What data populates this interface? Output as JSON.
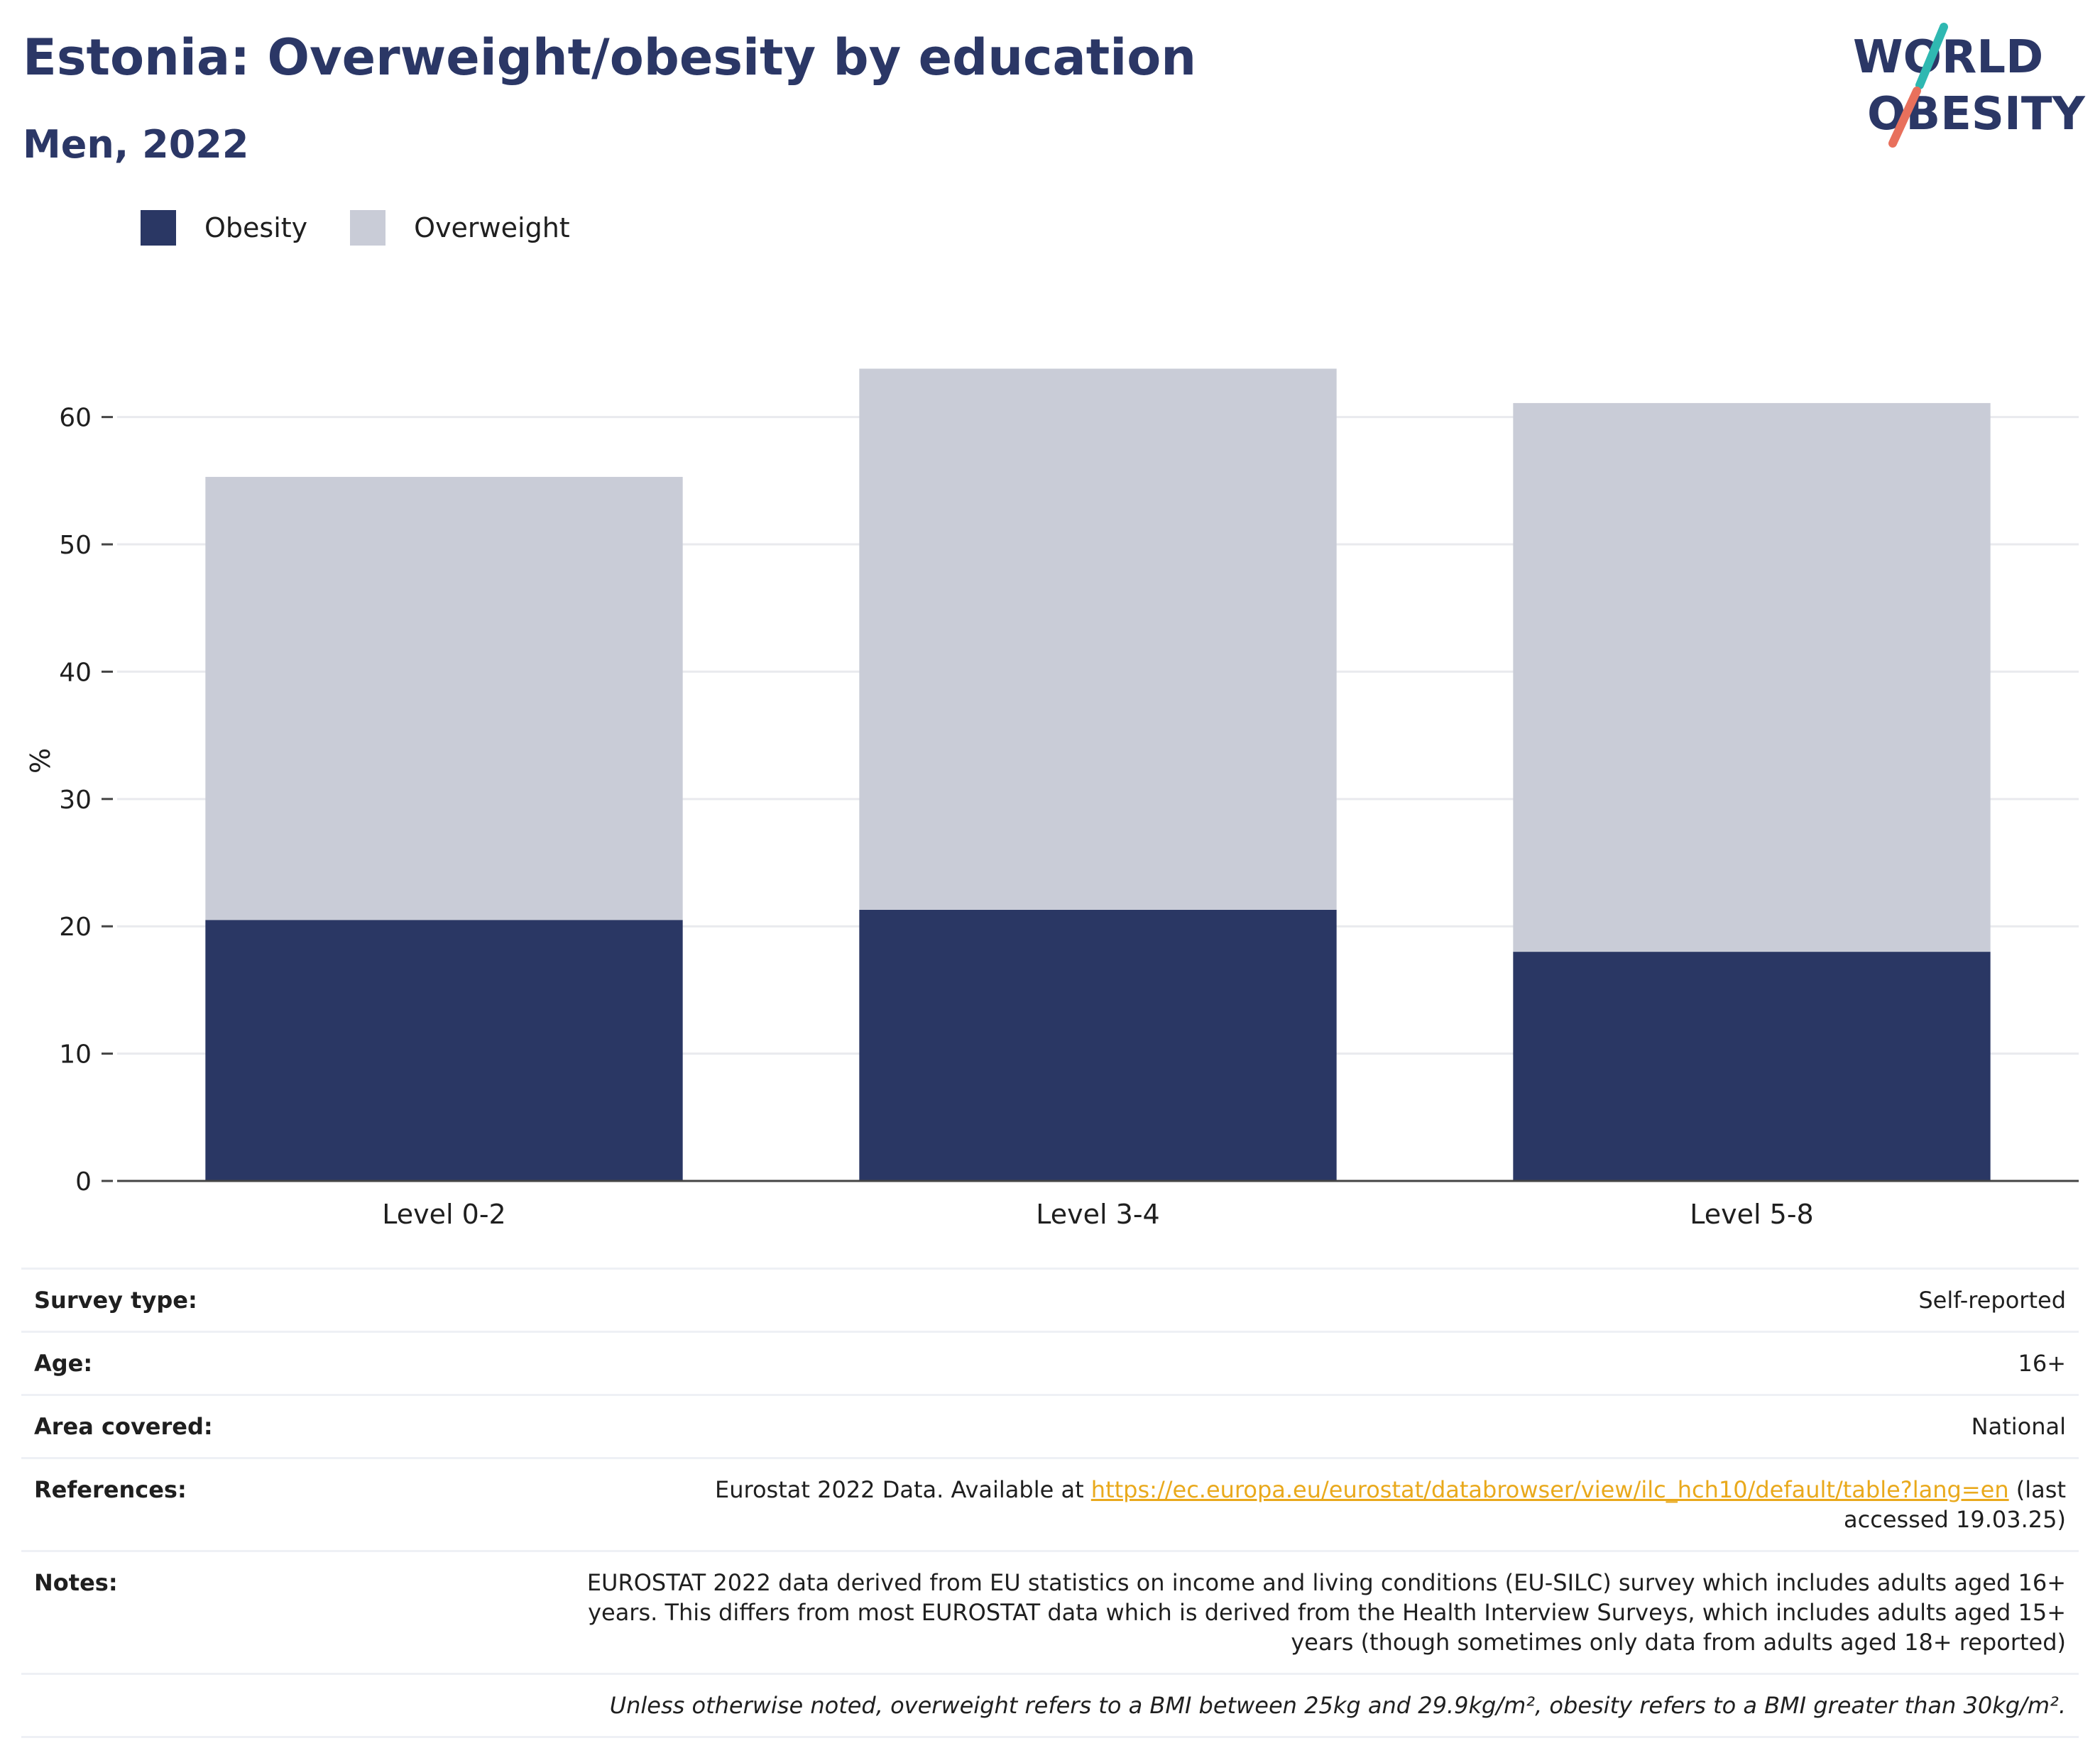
{
  "header": {
    "title": "Estonia: Overweight/obesity by education",
    "subtitle": "Men, 2022"
  },
  "logo": {
    "line1": "WORLD",
    "line2": "OBESITY"
  },
  "colors": {
    "obesity": "#2a3764",
    "overweight": "#c9ccd7",
    "accent_teal": "#2fb8b1",
    "accent_coral": "#e8705c",
    "link": "#e9a91c"
  },
  "chart_data": {
    "type": "bar",
    "stacked": true,
    "categories": [
      "Level 0-2",
      "Level 3-4",
      "Level 5-8"
    ],
    "series": [
      {
        "name": "Obesity",
        "values": [
          20.5,
          21.3,
          18.0
        ]
      },
      {
        "name": "Overweight",
        "values": [
          34.8,
          42.5,
          43.1
        ]
      }
    ],
    "ylabel": "%",
    "ylim": [
      0,
      66
    ],
    "yticks": [
      0,
      10,
      20,
      30,
      40,
      50,
      60
    ],
    "grid": true,
    "legend": "top-left"
  },
  "meta": {
    "survey_type_label": "Survey type:",
    "survey_type_value": "Self-reported",
    "age_label": "Age:",
    "age_value": "16+",
    "area_label": "Area covered:",
    "area_value": "National",
    "references_label": "References:",
    "references_prefix": "Eurostat 2022 Data. Available at ",
    "references_link": "https://ec.europa.eu/eurostat/databrowser/view/ilc_hch10/default/table?lang=en",
    "references_suffix": " (last accessed 19.03.25)",
    "notes_label": "Notes:",
    "notes_value": "EUROSTAT 2022 data derived from EU statistics on income and living conditions (EU-SILC) survey which includes adults aged 16+ years. This differs from most EUROSTAT data which is derived from the Health Interview Surveys, which includes adults aged 15+ years (though sometimes only data from adults aged 18+ reported)",
    "footnote": "Unless otherwise noted, overweight refers to a BMI between 25kg and 29.9kg/m², obesity refers to a BMI greater than 30kg/m²."
  }
}
